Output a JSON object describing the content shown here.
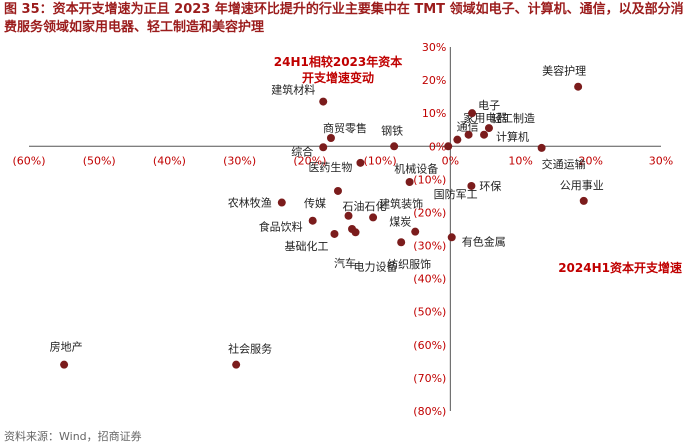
{
  "title": "图 35：资本开支增速为正且 2023 年增速环比提升的行业主要集中在 TMT 领域如电子、计算机、通信，以及部分消费服务领域如家用电器、轻工制造和美容护理",
  "source": "资料来源：Wind，招商证券",
  "colors": {
    "title": "#9b1c1c",
    "marker": "#7b1c1c",
    "axis_label": "#c00000",
    "axis": "#555555"
  },
  "chart_data": {
    "type": "scatter",
    "xlabel": "2024H1资本开支增速",
    "ylabel": "24H1相较2023年资本开支增速变动",
    "xlim": [
      -0.6,
      0.3
    ],
    "ylim": [
      -0.8,
      0.3
    ],
    "x_ticks": [
      {
        "value": -0.6,
        "label": "(60%)"
      },
      {
        "value": -0.5,
        "label": "(50%)"
      },
      {
        "value": -0.4,
        "label": "(40%)"
      },
      {
        "value": -0.3,
        "label": "(30%)"
      },
      {
        "value": -0.2,
        "label": "(20%)"
      },
      {
        "value": -0.1,
        "label": "(10%)"
      },
      {
        "value": 0.0,
        "label": "0%"
      },
      {
        "value": 0.1,
        "label": "10%"
      },
      {
        "value": 0.2,
        "label": "20%"
      },
      {
        "value": 0.3,
        "label": "30%"
      }
    ],
    "y_ticks": [
      {
        "value": 0.3,
        "label": "30%"
      },
      {
        "value": 0.2,
        "label": "20%"
      },
      {
        "value": 0.1,
        "label": "10%"
      },
      {
        "value": 0.0,
        "label": "0%"
      },
      {
        "value": -0.1,
        "label": "(10%)"
      },
      {
        "value": -0.2,
        "label": "(20%)"
      },
      {
        "value": -0.3,
        "label": "(30%)"
      },
      {
        "value": -0.4,
        "label": "(40%)"
      },
      {
        "value": -0.5,
        "label": "(50%)"
      },
      {
        "value": -0.6,
        "label": "(60%)"
      },
      {
        "value": -0.7,
        "label": "(70%)"
      },
      {
        "value": -0.8,
        "label": "(80%)"
      }
    ],
    "points": [
      {
        "name": "美容护理",
        "x": 0.182,
        "y": 0.18
      },
      {
        "name": "家用电器",
        "x": 0.01,
        "y": 0.02
      },
      {
        "name": "电子",
        "x": 0.031,
        "y": 0.1
      },
      {
        "name": "轻工制造",
        "x": 0.055,
        "y": 0.055
      },
      {
        "name": "通信",
        "x": 0.026,
        "y": 0.035
      },
      {
        "name": "计算机",
        "x": 0.048,
        "y": 0.035
      },
      {
        "name": "建筑材料",
        "x": -0.181,
        "y": 0.135
      },
      {
        "name": "商贸零售",
        "x": -0.17,
        "y": 0.025
      },
      {
        "name": "钢铁",
        "x": -0.08,
        "y": 0.0
      },
      {
        "name": "综合",
        "x": -0.181,
        "y": -0.003
      },
      {
        "name": "机械设备",
        "x": -0.003,
        "y": 0.0
      },
      {
        "name": "交通运输",
        "x": 0.13,
        "y": -0.005
      },
      {
        "name": "医药生物",
        "x": -0.128,
        "y": -0.05
      },
      {
        "name": "环保",
        "x": 0.03,
        "y": -0.12
      },
      {
        "name": "公用事业",
        "x": 0.19,
        "y": -0.165
      },
      {
        "name": "国防军工",
        "x": -0.058,
        "y": -0.108
      },
      {
        "name": "农林牧渔",
        "x": -0.24,
        "y": -0.17
      },
      {
        "name": "传媒",
        "x": -0.16,
        "y": -0.135
      },
      {
        "name": "石油石化",
        "x": -0.145,
        "y": -0.21
      },
      {
        "name": "食品饮料",
        "x": -0.196,
        "y": -0.225
      },
      {
        "name": "建筑装饰",
        "x": -0.11,
        "y": -0.215
      },
      {
        "name": "煤炭",
        "x": -0.05,
        "y": -0.258
      },
      {
        "name": "有色金属",
        "x": 0.002,
        "y": -0.275
      },
      {
        "name": "基础化工",
        "x": -0.165,
        "y": -0.265
      },
      {
        "name": "汽车",
        "x": -0.14,
        "y": -0.25
      },
      {
        "name": "电力设备",
        "x": -0.135,
        "y": -0.26
      },
      {
        "name": "纺织服饰",
        "x": -0.07,
        "y": -0.29
      },
      {
        "name": "房地产",
        "x": -0.55,
        "y": -0.66
      },
      {
        "name": "社会服务",
        "x": -0.305,
        "y": -0.66
      }
    ]
  }
}
